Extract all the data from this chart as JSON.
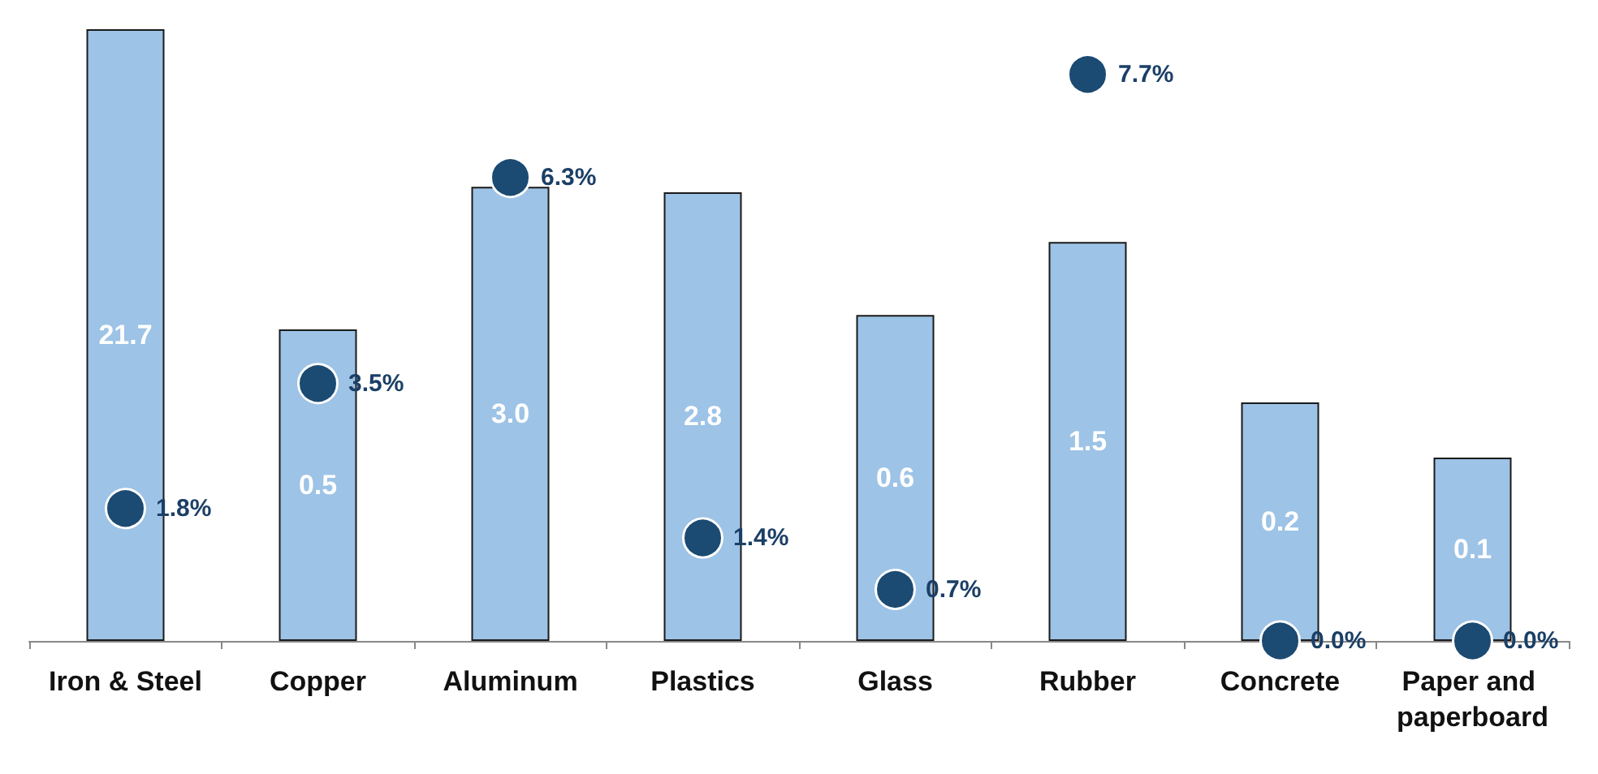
{
  "chart_data": {
    "type": "bar",
    "categories": [
      "Iron & Steel",
      "Copper",
      "Aluminum",
      "Plastics",
      "Glass",
      "Rubber",
      "Concrete",
      "Paper and paperboard"
    ],
    "log": "y",
    "ylim": [
      0.01,
      21.7
    ],
    "tick_labels": "x",
    "grid": false,
    "series": [
      {
        "color": "#9dc3e6",
        "values": [
          21.7,
          0.5,
          3.0,
          2.8,
          0.6,
          1.5,
          0.2,
          0.1
        ],
        "value_labels": [
          "21.7",
          "0.5",
          "3.0",
          "2.8",
          "0.6",
          "1.5",
          "0.2",
          "0.1"
        ]
      },
      {
        "type": "scatter",
        "axis": "y2",
        "color": "#1b4a72",
        "marker": "circle",
        "x": [
          "Iron & Steel",
          "Copper",
          "Aluminum",
          "Plastics",
          "Glass",
          "Rubber",
          "Concrete",
          "Paper and paperboard"
        ],
        "values": [
          1.8,
          3.5,
          6.3,
          1.4,
          0.7,
          7.7,
          0.0,
          0.0
        ],
        "value_labels": [
          "1.8%",
          "3.5%",
          "6.3%",
          "1.4%",
          "0.7%",
          "7.7%",
          "0.0%",
          "0.0%"
        ]
      }
    ]
  }
}
